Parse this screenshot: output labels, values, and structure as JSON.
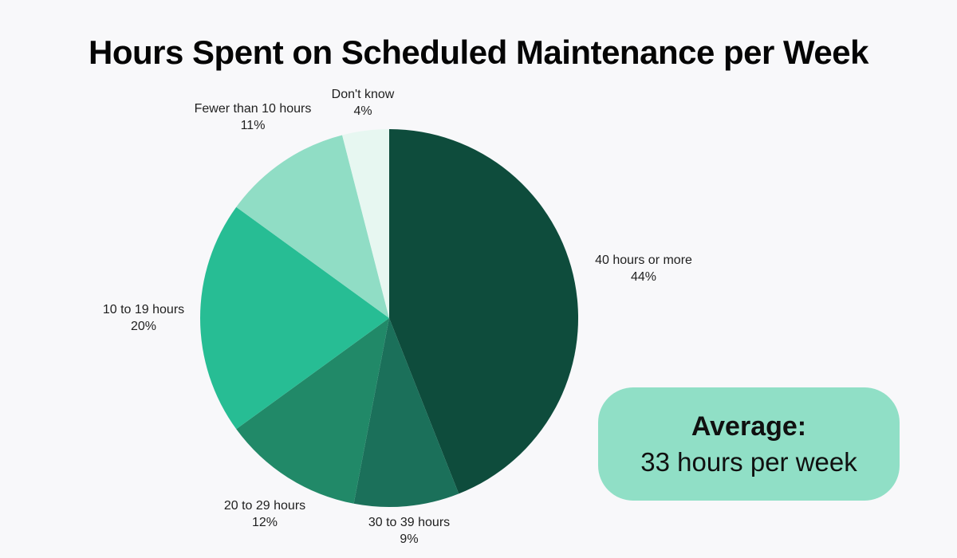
{
  "page": {
    "background_color": "#f8f8fa"
  },
  "title": "Hours Spent on Scheduled Maintenance per Week",
  "chart_data": {
    "type": "pie",
    "title": "Hours Spent on Scheduled Maintenance per Week",
    "start_angle": "12 o'clock, clockwise",
    "legend_position": "labels around pie",
    "slices": [
      {
        "label": "40 hours or more",
        "value": 44,
        "pct_text": "44%",
        "color": "#0e4c3c"
      },
      {
        "label": "30 to 39 hours",
        "value": 9,
        "pct_text": "9%",
        "color": "#1b705a"
      },
      {
        "label": "20 to 29 hours",
        "value": 12,
        "pct_text": "12%",
        "color": "#218968"
      },
      {
        "label": "10 to 19 hours",
        "value": 20,
        "pct_text": "20%",
        "color": "#27bd94"
      },
      {
        "label": "Fewer than 10 hours",
        "value": 11,
        "pct_text": "11%",
        "color": "#90ddc5"
      },
      {
        "label": "Don't know",
        "value": 4,
        "pct_text": "4%",
        "color": "#e7f7f1"
      }
    ]
  },
  "average_badge": {
    "heading": "Average:",
    "value": "33 hours per week",
    "background": "#90dfc6"
  }
}
